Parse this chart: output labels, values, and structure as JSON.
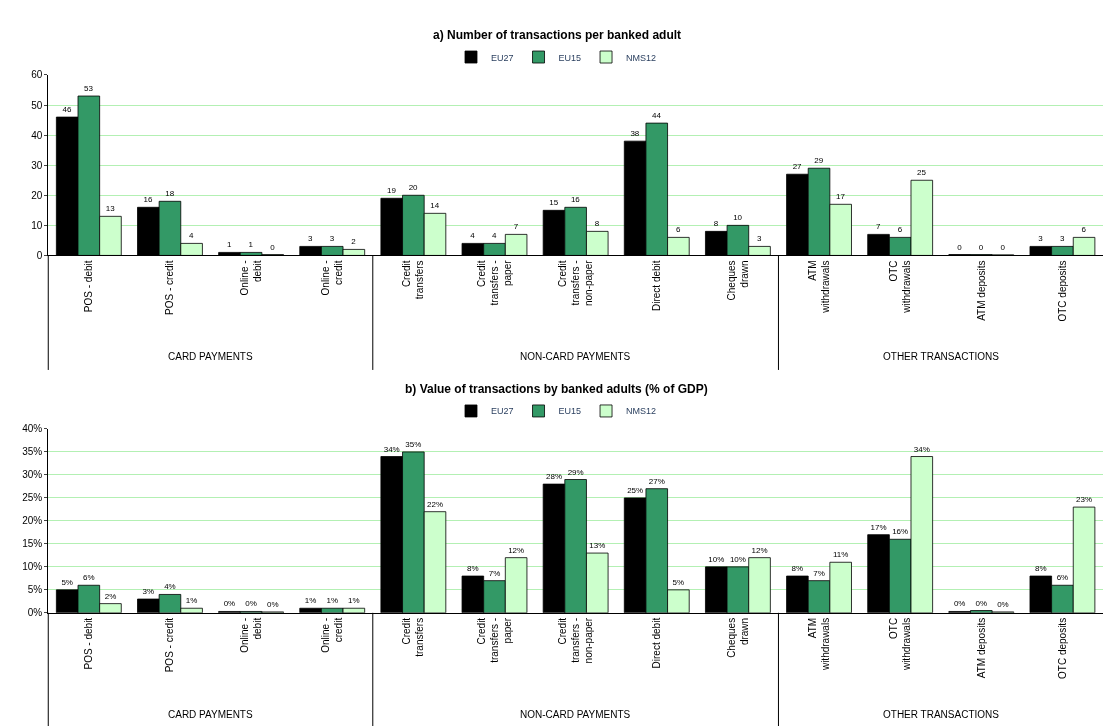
{
  "chart_data": [
    {
      "type": "bar",
      "title": "a) Number of transactions per banked adult",
      "categories": [
        "POS - debit",
        "POS - credit",
        "Online - debit",
        "Online - credit",
        "Credit transfers",
        "Credit transfers - paper",
        "Credit transfers - non-paper",
        "Direct debit",
        "Cheques drawn",
        "ATM withdrawals",
        "OTC withdrawals",
        "ATM deposits",
        "OTC deposits"
      ],
      "series": [
        {
          "name": "EU27",
          "color": "#000000",
          "values": [
            46,
            16,
            1,
            3,
            19,
            4,
            15,
            38,
            8,
            27,
            7,
            0.3,
            3
          ],
          "value_labels": [
            "46",
            "16",
            "1",
            "3",
            "19",
            "4",
            "15",
            "38",
            "8",
            "27",
            "7",
            "0",
            "3"
          ]
        },
        {
          "name": "EU15",
          "color": "#339966",
          "values": [
            53,
            18,
            1,
            3,
            20,
            4,
            16,
            44,
            10,
            29,
            6,
            0.3,
            3
          ],
          "value_labels": [
            "53",
            "18",
            "1",
            "3",
            "20",
            "4",
            "16",
            "44",
            "10",
            "29",
            "6",
            "0",
            "3"
          ]
        },
        {
          "name": "NMS12",
          "color": "#ccffcc",
          "values": [
            13,
            4,
            0.3,
            2,
            14,
            7,
            8,
            6,
            3,
            17,
            25,
            0.2,
            6
          ],
          "value_labels": [
            "13",
            "4",
            "0",
            "2",
            "14",
            "7",
            "8",
            "6",
            "3",
            "17",
            "25",
            "0",
            "6"
          ]
        }
      ],
      "ylim": [
        0,
        60
      ],
      "yticks": [
        0,
        10,
        20,
        30,
        40,
        50,
        60
      ],
      "grid": "y",
      "legend": "top",
      "annotations": [
        "CARD PAYMENTS",
        "NON-CARD PAYMENTS",
        "OTHER TRANSACTIONS"
      ]
    },
    {
      "type": "bar",
      "title": "b) Value of transactions by banked adults (% of GDP)",
      "categories": [
        "POS - debit",
        "POS - credit",
        "Online - debit",
        "Online - credit",
        "Credit transfers",
        "Credit transfers - paper",
        "Credit transfers - non-paper",
        "Direct debit",
        "Cheques drawn",
        "ATM withdrawals",
        "OTC withdrawals",
        "ATM deposits",
        "OTC deposits"
      ],
      "series": [
        {
          "name": "EU27",
          "color": "#000000",
          "values": [
            5,
            3,
            0.3,
            1,
            34,
            8,
            28,
            25,
            10,
            8,
            17,
            0.3,
            8
          ],
          "value_labels": [
            "5%",
            "3%",
            "0%",
            "1%",
            "34%",
            "8%",
            "28%",
            "25%",
            "10%",
            "8%",
            "17%",
            "0%",
            "8%"
          ]
        },
        {
          "name": "EU15",
          "color": "#339966",
          "values": [
            6,
            4,
            0.3,
            1,
            35,
            7,
            29,
            27,
            10,
            7,
            16,
            0.5,
            6
          ],
          "value_labels": [
            "6%",
            "4%",
            "0%",
            "1%",
            "35%",
            "7%",
            "29%",
            "27%",
            "10%",
            "7%",
            "16%",
            "0%",
            "6%"
          ]
        },
        {
          "name": "NMS12",
          "color": "#ccffcc",
          "values": [
            2,
            1,
            0.2,
            1,
            22,
            12,
            13,
            5,
            12,
            11,
            34,
            0.2,
            23
          ],
          "value_labels": [
            "2%",
            "1%",
            "0%",
            "1%",
            "22%",
            "12%",
            "13%",
            "5%",
            "12%",
            "11%",
            "34%",
            "0%",
            "23%"
          ]
        }
      ],
      "ylim": [
        0,
        40
      ],
      "yticks": [
        {
          "value": 0,
          "label": "0%"
        },
        {
          "value": 5,
          "label": "5%"
        },
        {
          "value": 10,
          "label": "10%"
        },
        {
          "value": 15,
          "label": "15%"
        },
        {
          "value": 20,
          "label": "20%"
        },
        {
          "value": 25,
          "label": "25%"
        },
        {
          "value": 30,
          "label": "30%"
        },
        {
          "value": 35,
          "label": "35%"
        },
        {
          "value": 40,
          "label": "40%"
        }
      ],
      "grid": "y",
      "legend": "top",
      "annotations": [
        "CARD PAYMENTS",
        "NON-CARD PAYMENTS",
        "OTHER TRANSACTIONS"
      ]
    }
  ]
}
